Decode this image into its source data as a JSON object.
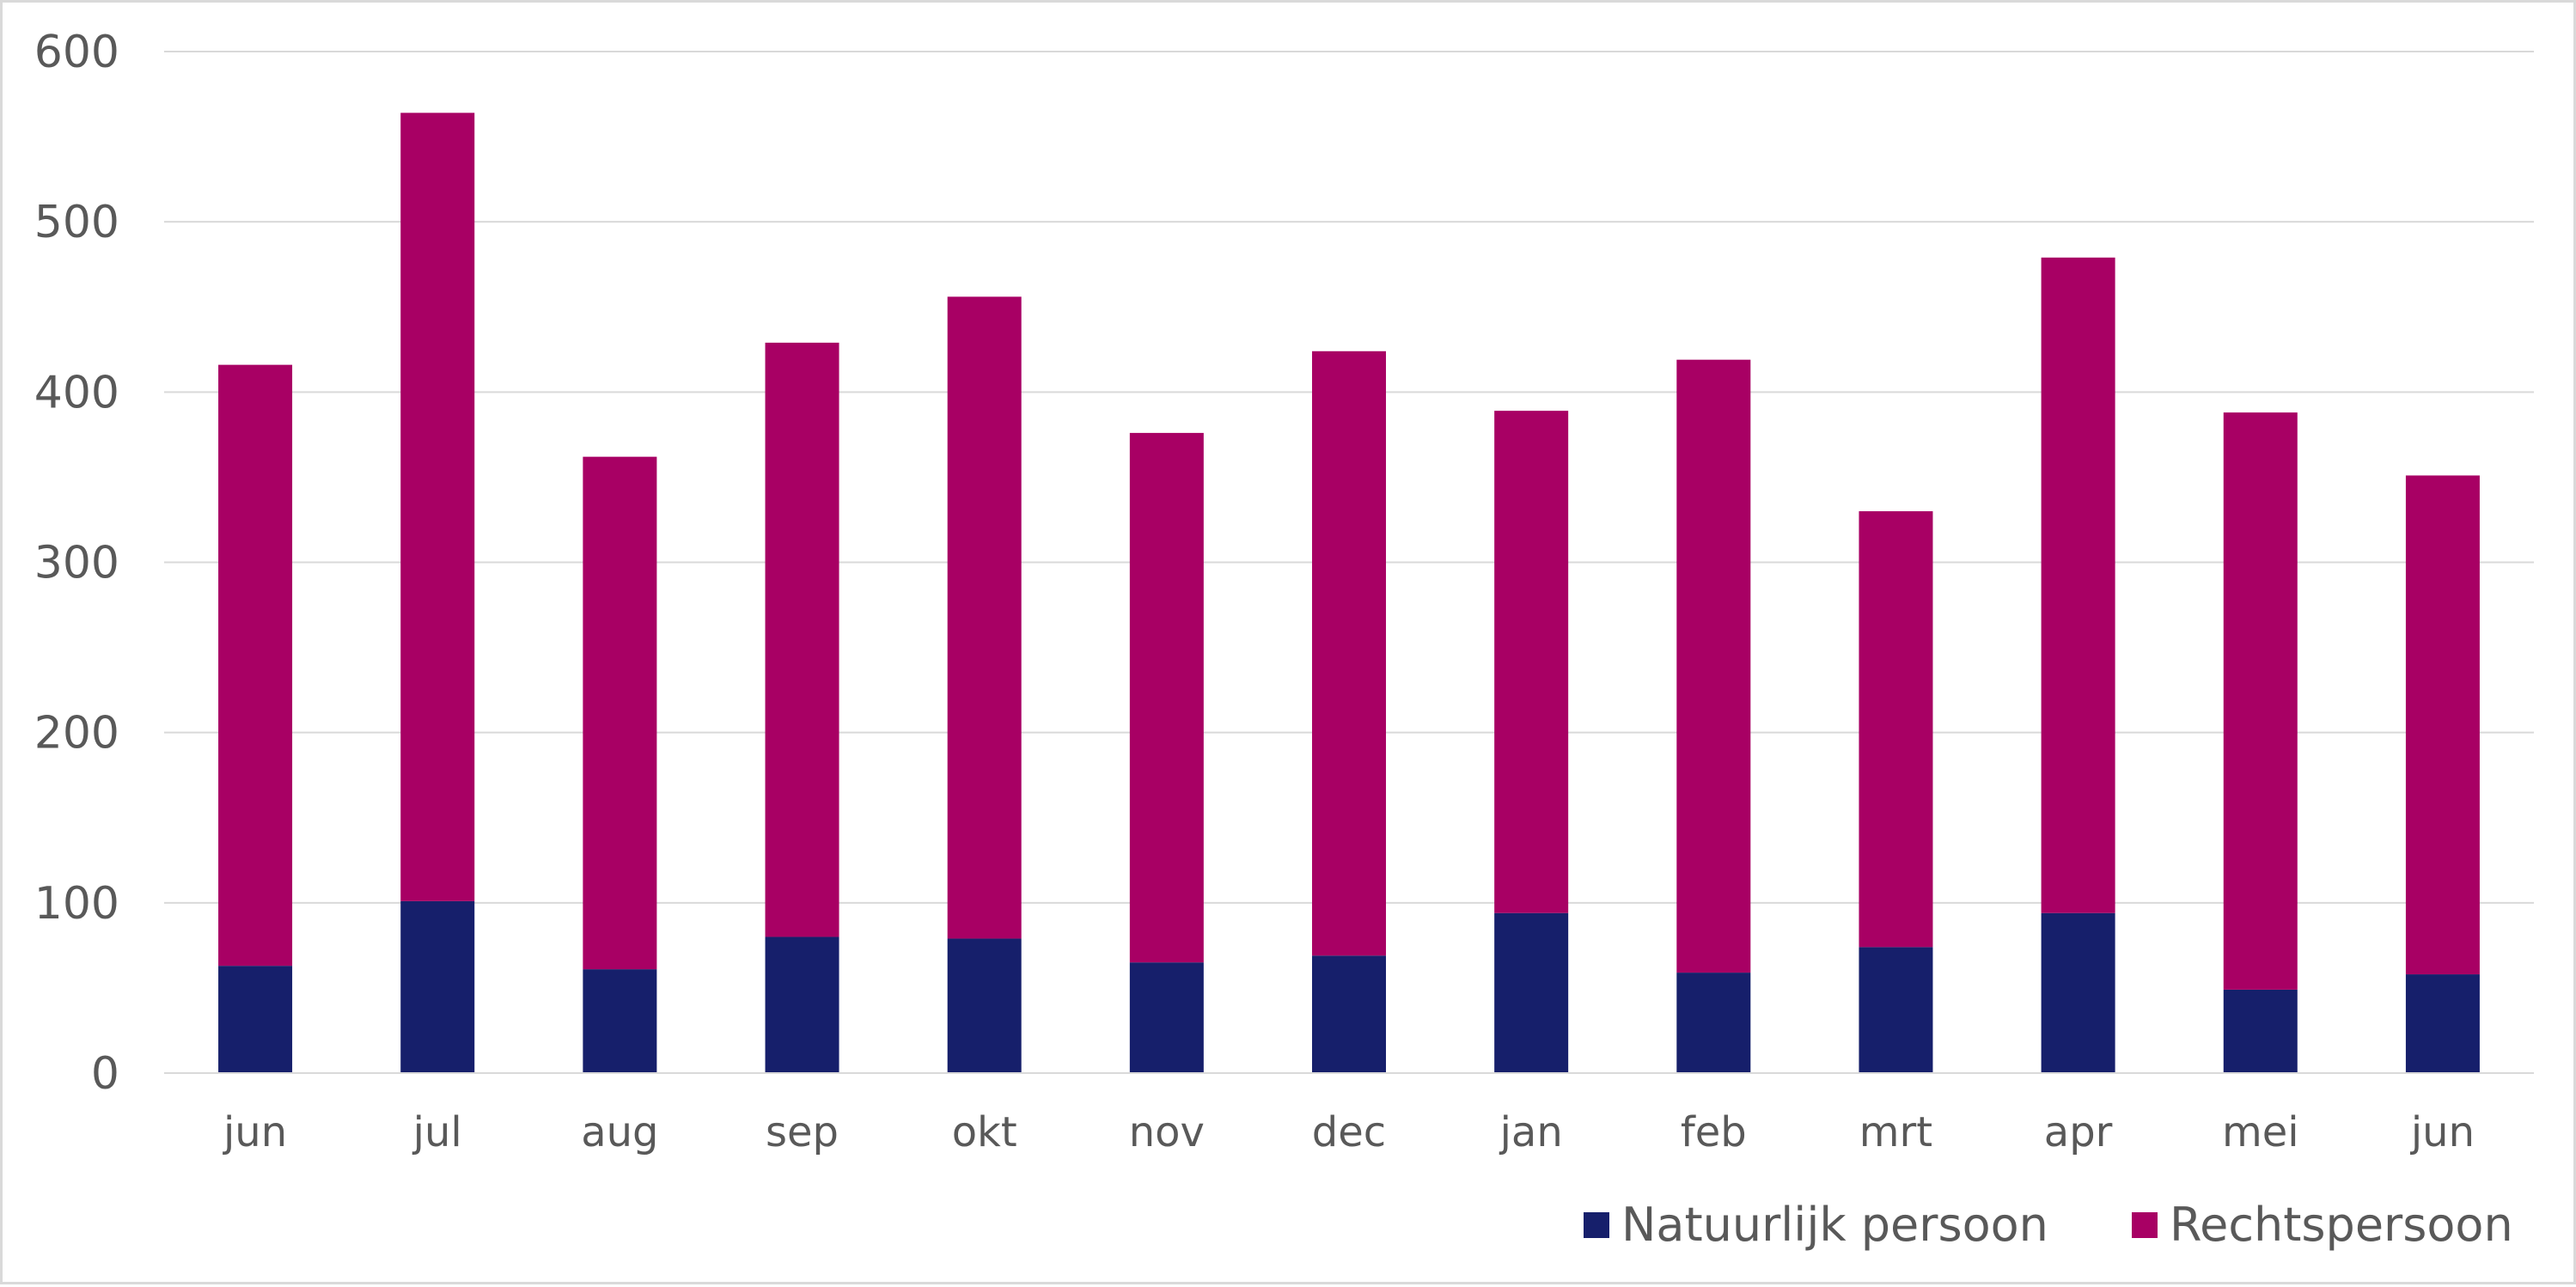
{
  "chart_data": {
    "type": "bar",
    "stacked": true,
    "title": "",
    "xlabel": "",
    "ylabel": "",
    "categories": [
      "jun",
      "jul",
      "aug",
      "sep",
      "okt",
      "nov",
      "dec",
      "jan",
      "feb",
      "mrt",
      "apr",
      "mei",
      "jun"
    ],
    "series": [
      {
        "name": "Natuurlijk persoon",
        "color": "#161f6b",
        "values": [
          63,
          101,
          61,
          80,
          79,
          65,
          69,
          94,
          59,
          74,
          94,
          49,
          58
        ]
      },
      {
        "name": "Rechtspersoon",
        "color": "#a80064",
        "values": [
          353,
          463,
          301,
          349,
          377,
          311,
          355,
          295,
          360,
          256,
          385,
          339,
          293
        ]
      }
    ],
    "ylim": [
      0,
      600
    ],
    "yticks": [
      "0",
      "100",
      "200",
      "300",
      "400",
      "500",
      "600"
    ],
    "grid": true,
    "legend_position": "bottom-right"
  }
}
